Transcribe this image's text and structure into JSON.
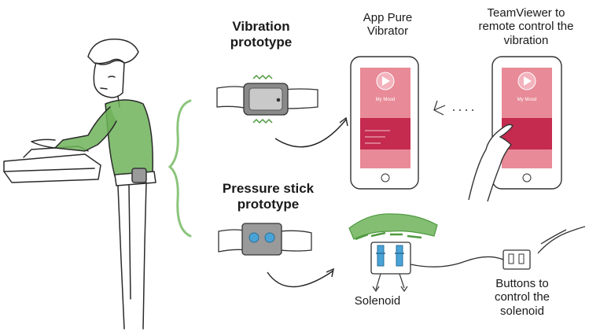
{
  "labels": {
    "vibration": "Vibration\nprototype",
    "pressure": "Pressure stick\nprototype",
    "app": "App Pure\nVibrator",
    "teamviewer": "TeamViewer to\nremote control the\nvibration",
    "solenoid": "Solenoid",
    "buttons": "Buttons to\ncontrol the\nsolenoid"
  },
  "phone_app": {
    "screen_title": "My Mood"
  },
  "colors": {
    "accent_green": "#6fb35a",
    "app_pink": "#e88a97",
    "app_crimson": "#c42b4f",
    "solenoid_blue": "#4aa3d6",
    "band_grey": "#8a8a8a"
  }
}
